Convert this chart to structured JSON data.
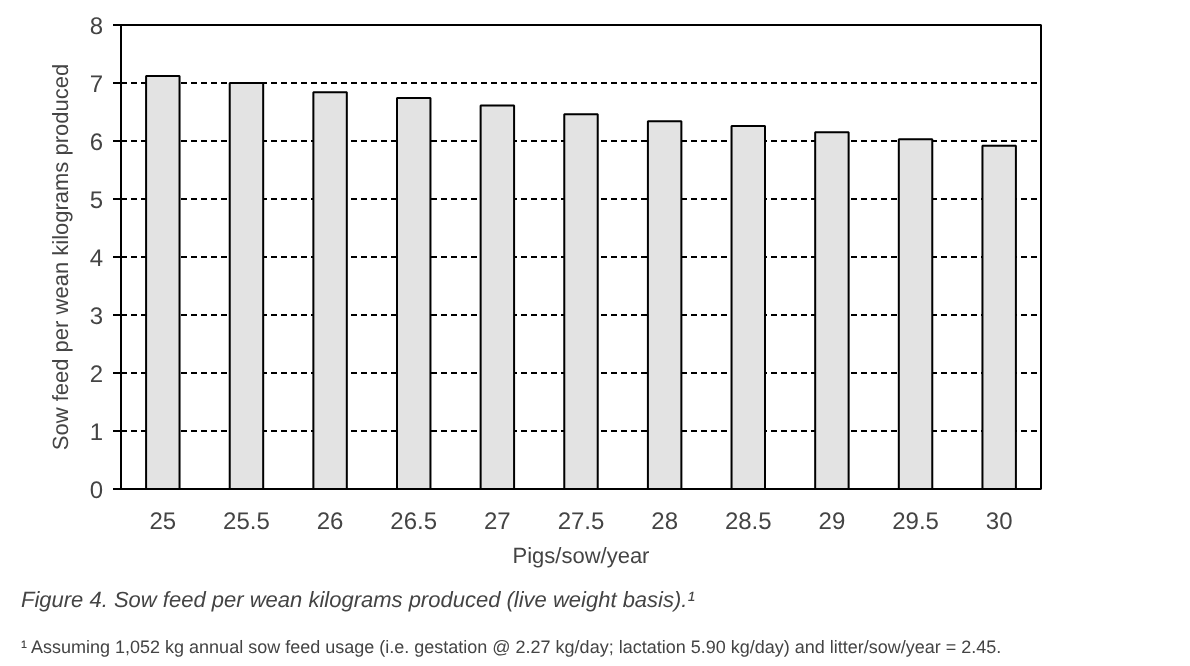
{
  "chart_data": {
    "type": "bar",
    "title": "Figure 4. Sow feed per wean kilograms produced (live weight basis).¹",
    "xlabel": "Pigs/sow/year",
    "ylabel": "Sow feed per wean kilograms produced",
    "categories": [
      "25",
      "25.5",
      "26",
      "26.5",
      "27",
      "27.5",
      "28",
      "28.5",
      "29",
      "29.5",
      "30"
    ],
    "values": [
      7.12,
      7.0,
      6.84,
      6.74,
      6.61,
      6.46,
      6.34,
      6.26,
      6.15,
      6.03,
      5.92
    ],
    "color": "#e3e3e3",
    "ylim": [
      0,
      8
    ],
    "yticks": [
      0,
      1,
      2,
      3,
      4,
      5,
      6,
      7,
      8
    ],
    "grid": "y",
    "annotations": [
      "¹ Assuming 1,052 kg annual sow feed usage (i.e. gestation @ 2.27 kg/day; lactation 5.90 kg/day) and litter/sow/year = 2.45."
    ]
  }
}
